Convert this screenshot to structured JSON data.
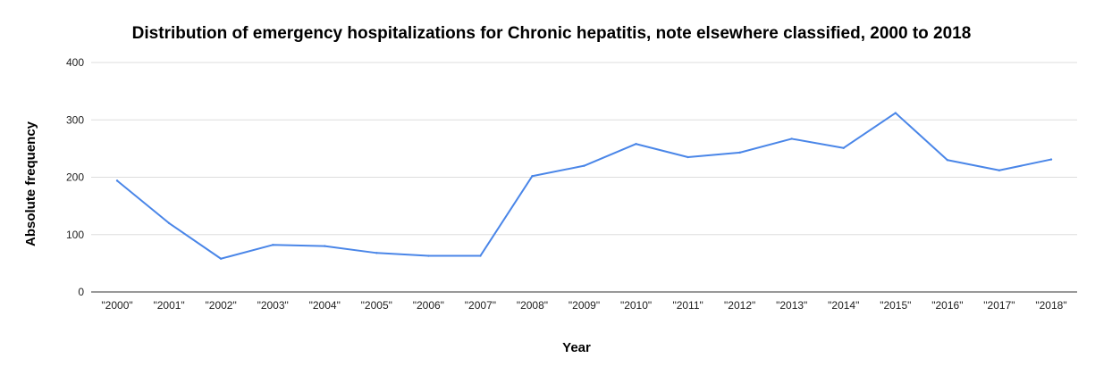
{
  "chart_data": {
    "type": "line",
    "title": "Distribution of emergency hospitalizations for Chronic hepatitis, note elsewhere classified, 2000 to 2018",
    "xlabel": "Year",
    "ylabel": "Absolute frequency",
    "ylim": [
      0,
      400
    ],
    "yticks": [
      "0",
      "100",
      "200",
      "300",
      "400"
    ],
    "grid": true,
    "categories": [
      "\"2000\"",
      "\"2001\"",
      "\"2002\"",
      "\"2003\"",
      "\"2004\"",
      "\"2005\"",
      "\"2006\"",
      "\"2007\"",
      "\"2008\"",
      "\"2009\"",
      "\"2010\"",
      "\"2011\"",
      "\"2012\"",
      "\"2013\"",
      "\"2014\"",
      "\"2015\"",
      "\"2016\"",
      "\"2017\"",
      "\"2018\""
    ],
    "series": [
      {
        "name": "Absolute frequency",
        "color": "#4a86e8",
        "values": [
          194,
          120,
          58,
          82,
          80,
          68,
          63,
          63,
          202,
          220,
          258,
          235,
          243,
          267,
          251,
          312,
          230,
          212,
          231
        ]
      }
    ]
  }
}
